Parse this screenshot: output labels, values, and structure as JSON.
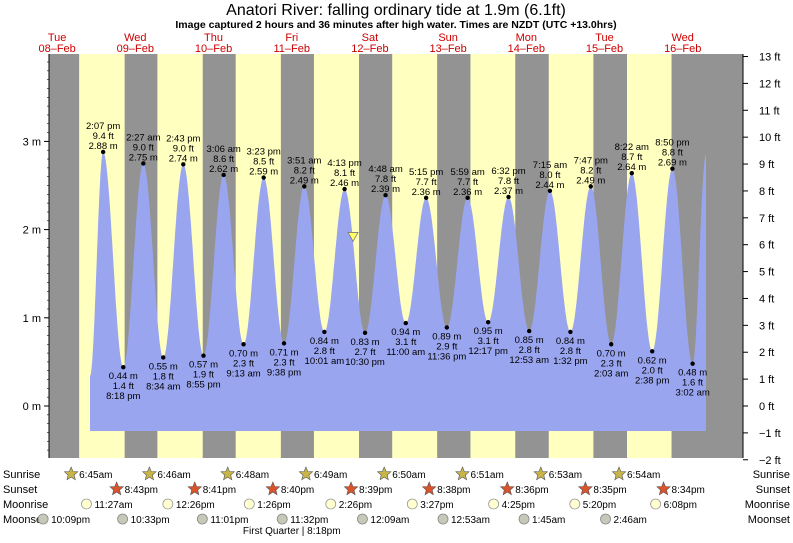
{
  "title": "Anatori River: falling  ordinary tide at 1.9m (6.1ft)",
  "subtitle": "Image captured 2 hours and 36 minutes after high water. Times are NZDT (UTC +13.0hrs)",
  "colors": {
    "tide_fill": "#9aa5f0",
    "day_band": "#ffffc0",
    "night_band": "#939393",
    "day_label": "#cc0000",
    "marker": "#ffff66"
  },
  "chart_data": {
    "type": "area",
    "title": "Anatori River: falling  ordinary tide at 1.9m (6.1ft)",
    "x_range": [
      "2022-02-07T21:30",
      "2022-02-16T18:30"
    ],
    "y_left": {
      "unit": "m",
      "range": [
        -0.55,
        4.0
      ],
      "ticks": [
        "0 m",
        "1 m",
        "2 m",
        "3 m"
      ]
    },
    "y_right": {
      "unit": "ft",
      "ticks": [
        "−2 ft",
        "−1 ft",
        "0 ft",
        "1 ft",
        "2 ft",
        "3 ft",
        "4 ft",
        "5 ft",
        "6 ft",
        "7 ft",
        "8 ft",
        "9 ft",
        "10 ft",
        "11 ft",
        "12 ft",
        "13 ft"
      ]
    },
    "days": [
      {
        "dow": "Tue",
        "date": "08–Feb"
      },
      {
        "dow": "Wed",
        "date": "09–Feb"
      },
      {
        "dow": "Thu",
        "date": "10–Feb"
      },
      {
        "dow": "Fri",
        "date": "11–Feb"
      },
      {
        "dow": "Sat",
        "date": "12–Feb"
      },
      {
        "dow": "Sun",
        "date": "13–Feb"
      },
      {
        "dow": "Mon",
        "date": "14–Feb"
      },
      {
        "dow": "Tue",
        "date": "15–Feb"
      },
      {
        "dow": "Wed",
        "date": "16–Feb"
      }
    ],
    "extremes": [
      {
        "t": "2022-02-08T14:07",
        "type": "high",
        "time": "2:07 pm",
        "ft": "9.4 ft",
        "m": "2.88 m",
        "v": 2.88
      },
      {
        "t": "2022-02-08T20:18",
        "type": "low",
        "time": "8:18 pm",
        "ft": "1.4 ft",
        "m": "0.44 m",
        "v": 0.44
      },
      {
        "t": "2022-02-09T02:27",
        "type": "high",
        "time": "2:27 am",
        "ft": "9.0 ft",
        "m": "2.75 m",
        "v": 2.75
      },
      {
        "t": "2022-02-09T08:34",
        "type": "low",
        "time": "8:34 am",
        "ft": "1.8 ft",
        "m": "0.55 m",
        "v": 0.55
      },
      {
        "t": "2022-02-09T14:43",
        "type": "high",
        "time": "2:43 pm",
        "ft": "9.0 ft",
        "m": "2.74 m",
        "v": 2.74
      },
      {
        "t": "2022-02-09T20:55",
        "type": "low",
        "time": "8:55 pm",
        "ft": "1.9 ft",
        "m": "0.57 m",
        "v": 0.57
      },
      {
        "t": "2022-02-10T03:06",
        "type": "high",
        "time": "3:06 am",
        "ft": "8.6 ft",
        "m": "2.62 m",
        "v": 2.62
      },
      {
        "t": "2022-02-10T09:13",
        "type": "low",
        "time": "9:13 am",
        "ft": "2.3 ft",
        "m": "0.70 m",
        "v": 0.7
      },
      {
        "t": "2022-02-10T15:23",
        "type": "high",
        "time": "3:23 pm",
        "ft": "8.5 ft",
        "m": "2.59 m",
        "v": 2.59
      },
      {
        "t": "2022-02-10T21:38",
        "type": "low",
        "time": "9:38 pm",
        "ft": "2.3 ft",
        "m": "0.71 m",
        "v": 0.71
      },
      {
        "t": "2022-02-11T03:51",
        "type": "high",
        "time": "3:51 am",
        "ft": "8.2 ft",
        "m": "2.49 m",
        "v": 2.49
      },
      {
        "t": "2022-02-11T10:01",
        "type": "low",
        "time": "10:01 am",
        "ft": "2.8 ft",
        "m": "0.84 m",
        "v": 0.84
      },
      {
        "t": "2022-02-11T16:13",
        "type": "high",
        "time": "4:13 pm",
        "ft": "8.1 ft",
        "m": "2.46 m",
        "v": 2.46
      },
      {
        "t": "2022-02-11T22:30",
        "type": "low",
        "time": "10:30 pm",
        "ft": "2.7 ft",
        "m": "0.83 m",
        "v": 0.83
      },
      {
        "t": "2022-02-12T04:48",
        "type": "high",
        "time": "4:48 am",
        "ft": "7.8 ft",
        "m": "2.39 m",
        "v": 2.39
      },
      {
        "t": "2022-02-12T11:00",
        "type": "low",
        "time": "11:00 am",
        "ft": "3.1 ft",
        "m": "0.94 m",
        "v": 0.94
      },
      {
        "t": "2022-02-12T17:15",
        "type": "high",
        "time": "5:15 pm",
        "ft": "7.7 ft",
        "m": "2.36 m",
        "v": 2.36
      },
      {
        "t": "2022-02-12T23:36",
        "type": "low",
        "time": "11:36 pm",
        "ft": "2.9 ft",
        "m": "0.89 m",
        "v": 0.89
      },
      {
        "t": "2022-02-13T05:59",
        "type": "high",
        "time": "5:59 am",
        "ft": "7.7 ft",
        "m": "2.36 m",
        "v": 2.36
      },
      {
        "t": "2022-02-13T12:17",
        "type": "low",
        "time": "12:17 pm",
        "ft": "3.1 ft",
        "m": "0.95 m",
        "v": 0.95
      },
      {
        "t": "2022-02-13T18:32",
        "type": "high",
        "time": "6:32 pm",
        "ft": "7.8 ft",
        "m": "2.37 m",
        "v": 2.37
      },
      {
        "t": "2022-02-14T00:53",
        "type": "low",
        "time": "12:53 am",
        "ft": "2.8 ft",
        "m": "0.85 m",
        "v": 0.85
      },
      {
        "t": "2022-02-14T07:15",
        "type": "high",
        "time": "7:15 am",
        "ft": "8.0 ft",
        "m": "2.44 m",
        "v": 2.44
      },
      {
        "t": "2022-02-14T13:32",
        "type": "low",
        "time": "1:32 pm",
        "ft": "2.8 ft",
        "m": "0.84 m",
        "v": 0.84
      },
      {
        "t": "2022-02-14T19:47",
        "type": "high",
        "time": "7:47 pm",
        "ft": "8.2 ft",
        "m": "2.49 m",
        "v": 2.49
      },
      {
        "t": "2022-02-15T02:03",
        "type": "low",
        "time": "2:03 am",
        "ft": "2.3 ft",
        "m": "0.70 m",
        "v": 0.7
      },
      {
        "t": "2022-02-15T08:22",
        "type": "high",
        "time": "8:22 am",
        "ft": "8.7 ft",
        "m": "2.64 m",
        "v": 2.64
      },
      {
        "t": "2022-02-15T14:38",
        "type": "low",
        "time": "2:38 pm",
        "ft": "2.0 ft",
        "m": "0.62 m",
        "v": 0.62
      },
      {
        "t": "2022-02-15T20:50",
        "type": "high",
        "time": "8:50 pm",
        "ft": "8.8 ft",
        "m": "2.69 m",
        "v": 2.69
      },
      {
        "t": "2022-02-16T03:02",
        "type": "low",
        "time": "3:02 am",
        "ft": "1.6 ft",
        "m": "0.48 m",
        "v": 0.48
      }
    ],
    "current": {
      "t": "2022-02-11T18:49",
      "value_m": 1.9
    },
    "rows": {
      "labels": [
        "Sunrise",
        "Sunset",
        "Moonrise",
        "Moonset"
      ],
      "sunrise": [
        {
          "t": "2022-02-08T06:45",
          "label": "6:45am"
        },
        {
          "t": "2022-02-09T06:46",
          "label": "6:46am"
        },
        {
          "t": "2022-02-10T06:48",
          "label": "6:48am"
        },
        {
          "t": "2022-02-11T06:49",
          "label": "6:49am"
        },
        {
          "t": "2022-02-12T06:50",
          "label": "6:50am"
        },
        {
          "t": "2022-02-13T06:51",
          "label": "6:51am"
        },
        {
          "t": "2022-02-14T06:53",
          "label": "6:53am"
        },
        {
          "t": "2022-02-15T06:54",
          "label": "6:54am"
        }
      ],
      "sunset": [
        {
          "t": "2022-02-08T20:43",
          "label": "8:43pm"
        },
        {
          "t": "2022-02-09T20:41",
          "label": "8:41pm"
        },
        {
          "t": "2022-02-10T20:40",
          "label": "8:40pm"
        },
        {
          "t": "2022-02-11T20:39",
          "label": "8:39pm"
        },
        {
          "t": "2022-02-12T20:38",
          "label": "8:38pm"
        },
        {
          "t": "2022-02-13T20:36",
          "label": "8:36pm"
        },
        {
          "t": "2022-02-14T20:35",
          "label": "8:35pm"
        },
        {
          "t": "2022-02-15T20:34",
          "label": "8:34pm"
        }
      ],
      "moonrise": [
        {
          "t": "2022-02-08T11:27",
          "label": "11:27am"
        },
        {
          "t": "2022-02-09T12:26",
          "label": "12:26pm"
        },
        {
          "t": "2022-02-10T13:26",
          "label": "1:26pm"
        },
        {
          "t": "2022-02-11T14:26",
          "label": "2:26pm"
        },
        {
          "t": "2022-02-12T15:27",
          "label": "3:27pm"
        },
        {
          "t": "2022-02-13T16:25",
          "label": "4:25pm"
        },
        {
          "t": "2022-02-14T17:20",
          "label": "5:20pm"
        },
        {
          "t": "2022-02-15T18:08",
          "label": "6:08pm"
        }
      ],
      "moonset": [
        {
          "t": "2022-02-07T22:09",
          "label": "10:09pm"
        },
        {
          "t": "2022-02-08T22:33",
          "label": "10:33pm"
        },
        {
          "t": "2022-02-09T23:01",
          "label": "11:01pm"
        },
        {
          "t": "2022-02-10T23:32",
          "label": "11:32pm"
        },
        {
          "t": "2022-02-12T00:09",
          "label": "12:09am"
        },
        {
          "t": "2022-02-13T00:53",
          "label": "12:53am"
        },
        {
          "t": "2022-02-14T01:45",
          "label": "1:45am"
        },
        {
          "t": "2022-02-15T02:46",
          "label": "2:46am"
        }
      ]
    },
    "moon_phase_note": "First Quarter | 8:18pm"
  }
}
